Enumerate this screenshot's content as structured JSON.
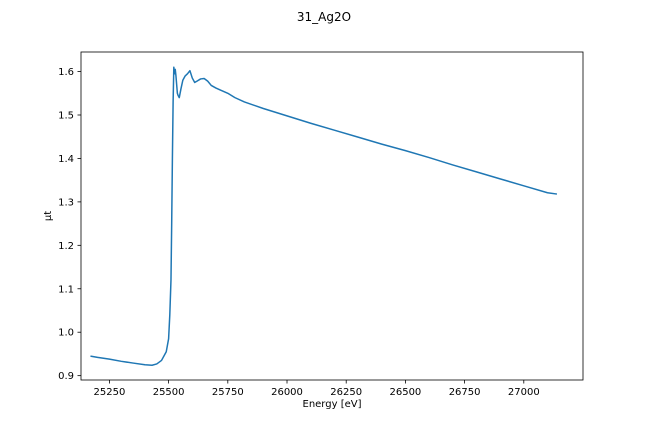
{
  "chart_data": {
    "type": "line",
    "title": "31_Ag2O",
    "xlabel": "Energy [eV]",
    "ylabel": "μt",
    "xlim": [
      25130,
      27250
    ],
    "ylim": [
      0.89,
      1.645
    ],
    "x_ticks": [
      25250,
      25500,
      25750,
      26000,
      26250,
      26500,
      26750,
      27000
    ],
    "y_ticks": [
      0.9,
      1.0,
      1.1,
      1.2,
      1.3,
      1.4,
      1.5,
      1.6
    ],
    "grid": false,
    "line_color": "#1f77b4",
    "series": [
      {
        "x": [
          25170,
          25200,
          25250,
          25300,
          25350,
          25400,
          25430,
          25450,
          25470,
          25490,
          25500,
          25505,
          25510,
          25513,
          25516,
          25519,
          25522,
          25525,
          25528,
          25531,
          25534,
          25537,
          25540,
          25545,
          25552,
          25560,
          25570,
          25580,
          25590,
          25600,
          25610,
          25620,
          25635,
          25650,
          25665,
          25680,
          25700,
          25720,
          25750,
          25780,
          25820,
          25900,
          26000,
          26100,
          26200,
          26300,
          26400,
          26500,
          26600,
          26700,
          26800,
          26900,
          27000,
          27100,
          27140
        ],
        "y": [
          0.945,
          0.942,
          0.938,
          0.933,
          0.929,
          0.925,
          0.924,
          0.927,
          0.935,
          0.955,
          0.985,
          1.04,
          1.12,
          1.25,
          1.4,
          1.53,
          1.61,
          1.595,
          1.605,
          1.59,
          1.57,
          1.55,
          1.545,
          1.54,
          1.56,
          1.58,
          1.59,
          1.595,
          1.602,
          1.585,
          1.575,
          1.578,
          1.583,
          1.584,
          1.578,
          1.568,
          1.562,
          1.557,
          1.55,
          1.54,
          1.53,
          1.515,
          1.498,
          1.481,
          1.465,
          1.449,
          1.433,
          1.418,
          1.402,
          1.385,
          1.369,
          1.353,
          1.337,
          1.321,
          1.318
        ]
      }
    ]
  }
}
